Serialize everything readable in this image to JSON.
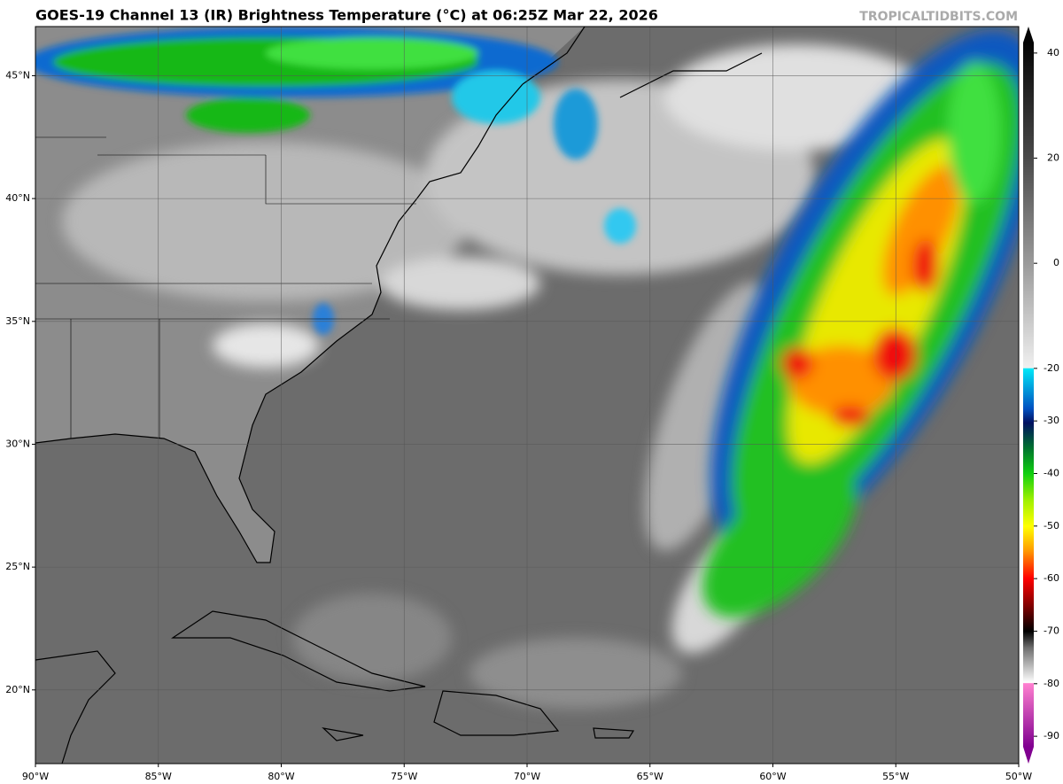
{
  "map": {
    "title": "GOES-19 Channel 13 (IR) Brightness Temperature (°C) at 06:25Z Mar 22, 2026",
    "credit": "TROPICALTIDBITS.COM",
    "lon_range": [
      -90,
      -50
    ],
    "lat_range": [
      17,
      47
    ],
    "lon_ticks": [
      {
        "value": -90,
        "label": "90°W"
      },
      {
        "value": -85,
        "label": "85°W"
      },
      {
        "value": -80,
        "label": "80°W"
      },
      {
        "value": -75,
        "label": "75°W"
      },
      {
        "value": -70,
        "label": "70°W"
      },
      {
        "value": -65,
        "label": "65°W"
      },
      {
        "value": -60,
        "label": "60°W"
      },
      {
        "value": -55,
        "label": "55°W"
      },
      {
        "value": -50,
        "label": "50°W"
      }
    ],
    "lat_ticks": [
      {
        "value": 20,
        "label": "20°N"
      },
      {
        "value": 25,
        "label": "25°N"
      },
      {
        "value": 30,
        "label": "30°N"
      },
      {
        "value": 35,
        "label": "35°N"
      },
      {
        "value": 40,
        "label": "40°N"
      },
      {
        "value": 45,
        "label": "45°N"
      }
    ]
  },
  "colorbar": {
    "range": [
      -92,
      42
    ],
    "ticks": [
      40,
      20,
      0,
      -20,
      -30,
      -40,
      -50,
      -60,
      -70,
      -80,
      -90
    ]
  }
}
